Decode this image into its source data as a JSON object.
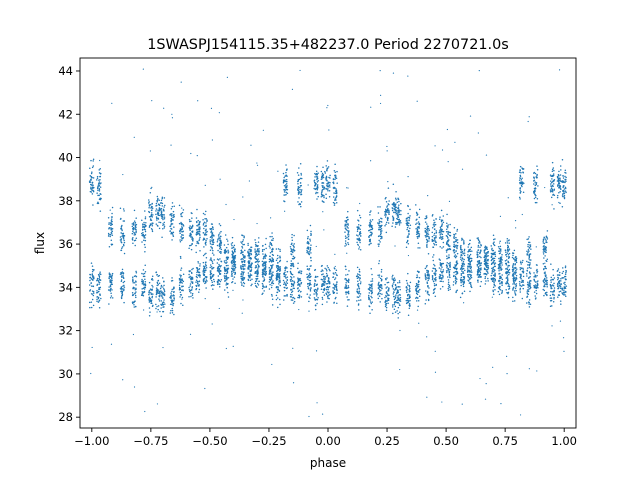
{
  "chart_data": {
    "type": "scatter",
    "title": "1SWASPJ154115.35+482237.0 Period 2270721.0s",
    "xlabel": "phase",
    "ylabel": "flux",
    "xlim": [
      -1.05,
      1.05
    ],
    "ylim": [
      27.5,
      44.6
    ],
    "x_ticks": [
      -1.0,
      -0.75,
      -0.5,
      -0.25,
      0.0,
      0.25,
      0.5,
      0.75,
      1.0
    ],
    "x_tick_labels": [
      "−1.00",
      "−0.75",
      "−0.50",
      "−0.25",
      "0.00",
      "0.25",
      "0.50",
      "0.75",
      "1.00"
    ],
    "y_ticks": [
      28,
      30,
      32,
      34,
      36,
      38,
      40,
      42,
      44
    ],
    "y_tick_labels": [
      "28",
      "30",
      "32",
      "34",
      "36",
      "38",
      "40",
      "42",
      "44"
    ],
    "grid": false,
    "legend": "none",
    "marker_color": "#1f77b4",
    "series": [
      {
        "x": [
          -1.0,
          -0.97,
          -0.92,
          -0.87,
          -0.82,
          -0.78,
          -0.75,
          -0.72,
          -0.7,
          -0.66,
          -0.62,
          -0.58,
          -0.55,
          -0.52,
          -0.49,
          -0.46,
          -0.43,
          -0.4,
          -0.36,
          -0.33,
          -0.3,
          -0.27,
          -0.24,
          -0.21,
          -0.18,
          -0.15,
          -0.12,
          -0.08,
          -0.05,
          -0.02,
          0.0,
          0.03,
          0.08,
          0.13,
          0.18,
          0.22,
          0.25,
          0.28,
          0.3,
          0.34,
          0.38,
          0.42,
          0.45,
          0.48,
          0.51,
          0.54,
          0.57,
          0.6,
          0.64,
          0.67,
          0.7,
          0.73,
          0.76,
          0.79,
          0.82,
          0.85,
          0.88,
          0.92,
          0.95,
          0.98,
          1.0
        ],
        "y_upper": [
          38.8,
          38.6,
          36.8,
          36.5,
          36.6,
          36.7,
          37.4,
          37.6,
          37.3,
          37.0,
          36.7,
          36.6,
          36.5,
          36.6,
          36.3,
          36.0,
          35.5,
          35.4,
          35.6,
          35.3,
          35.5,
          35.3,
          35.6,
          35.0,
          38.8,
          35.6,
          38.7,
          35.8,
          38.8,
          38.7,
          38.8,
          38.7,
          36.8,
          36.5,
          36.6,
          36.7,
          37.4,
          37.6,
          37.3,
          37.0,
          36.7,
          36.6,
          36.5,
          36.6,
          36.3,
          36.0,
          35.5,
          35.4,
          35.6,
          35.3,
          35.5,
          35.3,
          35.6,
          35.0,
          38.8,
          35.6,
          38.7,
          35.8,
          38.8,
          38.7,
          38.8
        ],
        "y_lower": [
          34.2,
          34.0,
          34.1,
          34.0,
          33.9,
          34.1,
          33.7,
          33.8,
          33.6,
          33.6,
          34.1,
          34.3,
          34.5,
          34.6,
          34.8,
          34.7,
          34.5,
          34.8,
          34.7,
          34.9,
          34.6,
          34.5,
          34.3,
          34.2,
          34.4,
          34.1,
          34.3,
          34.2,
          34.0,
          34.2,
          34.2,
          34.0,
          34.1,
          34.0,
          33.9,
          34.1,
          33.7,
          33.8,
          33.6,
          33.6,
          34.1,
          34.3,
          34.5,
          34.6,
          34.8,
          34.7,
          34.5,
          34.8,
          34.7,
          34.9,
          34.6,
          34.5,
          34.3,
          34.2,
          34.4,
          34.1,
          34.3,
          34.2,
          34.0,
          34.2,
          34.2
        ]
      }
    ]
  }
}
